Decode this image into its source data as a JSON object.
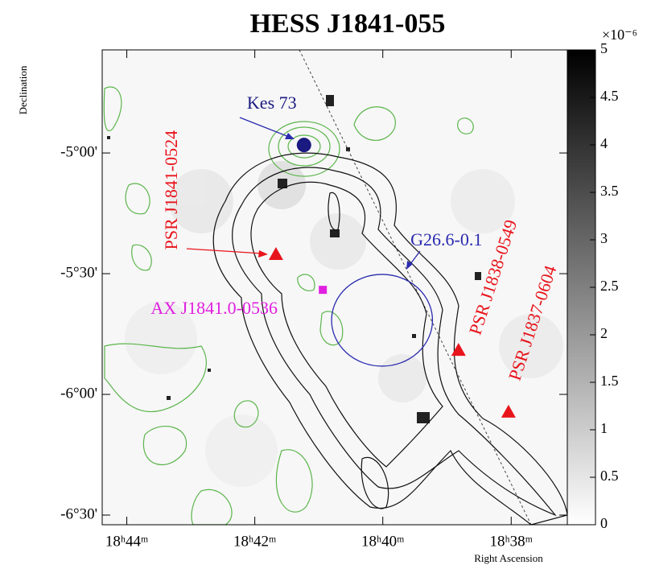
{
  "chart_data": {
    "type": "skymap",
    "title": "HESS J1841-055",
    "x_label": "Right Ascension",
    "y_label": "Declination",
    "xlim": [
      18.7397,
      18.6187
    ],
    "ylim": [
      -6.54,
      -4.573
    ],
    "xticks": [
      {
        "value": 18.7333,
        "label": "18ʰ44ᵐ"
      },
      {
        "value": 18.7,
        "label": "18ʰ42ᵐ"
      },
      {
        "value": 18.6667,
        "label": "18ʰ40ᵐ"
      },
      {
        "value": 18.6333,
        "label": "18ʰ38ᵐ"
      }
    ],
    "yticks": [
      {
        "value": -5,
        "label": "-5°00'"
      },
      {
        "value": -5.5,
        "label": "-5°30'"
      },
      {
        "value": -6,
        "label": "-6°00'"
      },
      {
        "value": -6.5,
        "label": "-6°30'"
      }
    ],
    "colorbar": {
      "lim": [
        0,
        5
      ],
      "ticks": [
        0,
        0.5,
        1,
        1.5,
        2,
        2.5,
        3,
        3.5,
        4,
        4.5,
        5
      ],
      "unit": "×10⁻⁶"
    },
    "sources": [
      {
        "name": "Kes 73",
        "x": 18.6872,
        "y": -4.967,
        "color": "#1a1a80",
        "marker": "dot"
      },
      {
        "name": "PSR J1841-0524",
        "x": 18.6945,
        "y": -5.42,
        "color": "#e8141c",
        "marker": "triangle"
      },
      {
        "name": "AX J1841.0-0536",
        "x": 18.6823,
        "y": -5.567,
        "color": "#e020e0",
        "marker": "square"
      },
      {
        "name": "G26.6-0.1",
        "x": 18.6669,
        "y": -5.693,
        "radius": 0.19,
        "color": "#2a2ab0",
        "marker": "circle"
      },
      {
        "name": "PSR J1838-0549",
        "x": 18.647,
        "y": -5.817,
        "color": "#e8141c",
        "marker": "triangle"
      },
      {
        "name": "PSR J1837-0604",
        "x": 18.634,
        "y": -6.073,
        "color": "#e8141c",
        "marker": "triangle"
      }
    ]
  }
}
